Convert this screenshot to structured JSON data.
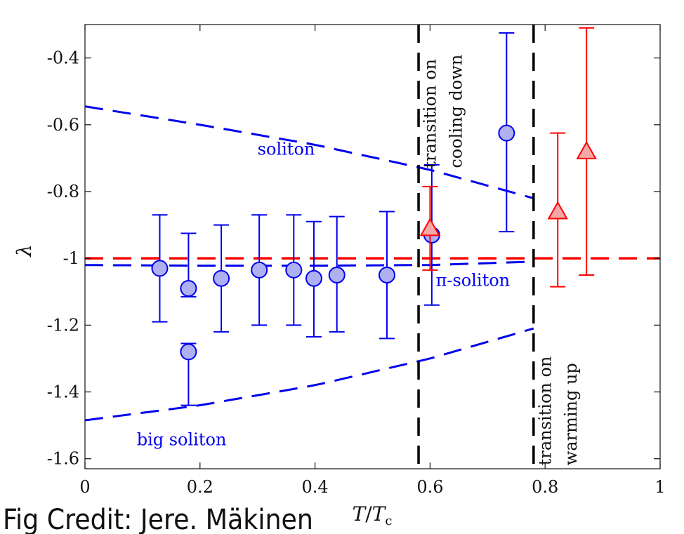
{
  "credit": "Fig Credit: Jere. Mäkinen",
  "chart_data": {
    "type": "scatter",
    "xlabel": "T/Tc",
    "xlabel_main": "T",
    "xlabel_denominator": "T",
    "xlabel_subscript": "c",
    "ylabel": "λ",
    "xlim": [
      0,
      1
    ],
    "ylim": [
      -1.63,
      -0.3
    ],
    "x_ticks": [
      0,
      0.2,
      0.4,
      0.6,
      0.8,
      1
    ],
    "x_tick_labels": [
      "0",
      "0.2",
      "0.4",
      "0.6",
      "0.8",
      "1"
    ],
    "y_ticks": [
      -0.4,
      -0.6,
      -0.8,
      -1,
      -1.2,
      -1.4,
      -1.6
    ],
    "y_tick_labels": [
      "-0.4",
      "-0.6",
      "-0.8",
      "-1",
      "-1.2",
      "-1.4",
      "-1.6"
    ],
    "grid": false,
    "colors": {
      "blue": "#0000ee",
      "marker_blue": "#aeb0f0",
      "red": "#ff0000",
      "marker_red": "#f5a8a8",
      "black": "#000000"
    },
    "series": [
      {
        "marker": "circle",
        "color": "blue",
        "points": [
          {
            "x": 0.13,
            "y": -1.03,
            "lo": -1.19,
            "hi": -0.87
          },
          {
            "x": 0.18,
            "y": -1.09,
            "lo": -1.115,
            "hi": -0.925
          },
          {
            "x": 0.18,
            "y": -1.28,
            "lo": -1.44,
            "hi": -1.255
          },
          {
            "x": 0.237,
            "y": -1.06,
            "lo": -1.22,
            "hi": -0.9
          },
          {
            "x": 0.303,
            "y": -1.035,
            "lo": -1.2,
            "hi": -0.87
          },
          {
            "x": 0.363,
            "y": -1.035,
            "lo": -1.2,
            "hi": -0.87
          },
          {
            "x": 0.398,
            "y": -1.06,
            "lo": -1.235,
            "hi": -0.89
          },
          {
            "x": 0.438,
            "y": -1.05,
            "lo": -1.22,
            "hi": -0.875
          },
          {
            "x": 0.525,
            "y": -1.05,
            "lo": -1.24,
            "hi": -0.86
          },
          {
            "x": 0.603,
            "y": -0.93,
            "lo": -1.14,
            "hi": -0.72
          },
          {
            "x": 0.733,
            "y": -0.625,
            "lo": -0.92,
            "hi": -0.325
          }
        ]
      },
      {
        "marker": "triangle",
        "color": "red",
        "points": [
          {
            "x": 0.6,
            "y": -0.91,
            "lo": -1.035,
            "hi": -0.785
          },
          {
            "x": 0.822,
            "y": -0.86,
            "lo": -1.085,
            "hi": -0.625
          },
          {
            "x": 0.872,
            "y": -0.68,
            "lo": -1.05,
            "hi": -0.31
          }
        ]
      }
    ],
    "curves": [
      {
        "label": "soliton",
        "color": "blue",
        "style": "dashed",
        "x": [
          0,
          0.2,
          0.4,
          0.6,
          0.78
        ],
        "y": [
          -0.545,
          -0.6,
          -0.66,
          -0.735,
          -0.82
        ]
      },
      {
        "label": "π-soliton",
        "color": "blue",
        "style": "dashed",
        "x": [
          0,
          0.2,
          0.4,
          0.6,
          0.78
        ],
        "y": [
          -1.02,
          -1.022,
          -1.022,
          -1.02,
          -1.01
        ]
      },
      {
        "label": "big soliton",
        "color": "blue",
        "style": "dashed",
        "x": [
          0,
          0.2,
          0.4,
          0.6,
          0.78
        ],
        "y": [
          -1.485,
          -1.44,
          -1.38,
          -1.3,
          -1.21
        ]
      }
    ],
    "reference_lines": [
      {
        "orientation": "horizontal",
        "value": -1,
        "color": "red",
        "style": "dashed"
      },
      {
        "orientation": "vertical",
        "value": 0.58,
        "color": "black",
        "style": "dashed"
      },
      {
        "orientation": "vertical",
        "value": 0.78,
        "color": "black",
        "style": "dashed"
      }
    ],
    "annotations": [
      {
        "text": "soliton",
        "x": 0.3,
        "y": -0.69,
        "color": "blue",
        "rotate": 0
      },
      {
        "text": "π-soliton",
        "x": 0.61,
        "y": -1.083,
        "color": "blue",
        "rotate": 0
      },
      {
        "text": "big soliton",
        "x": 0.09,
        "y": -1.56,
        "color": "blue",
        "rotate": 0
      },
      {
        "text": "transition on",
        "x": 0.61,
        "y": -0.73,
        "color": "black",
        "rotate": -90
      },
      {
        "text": "cooling down",
        "x": 0.655,
        "y": -0.73,
        "color": "black",
        "rotate": -90
      },
      {
        "text": "transition on",
        "x": 0.81,
        "y": -1.62,
        "color": "black",
        "rotate": -90
      },
      {
        "text": "warming up",
        "x": 0.855,
        "y": -1.62,
        "color": "black",
        "rotate": -90
      }
    ]
  }
}
